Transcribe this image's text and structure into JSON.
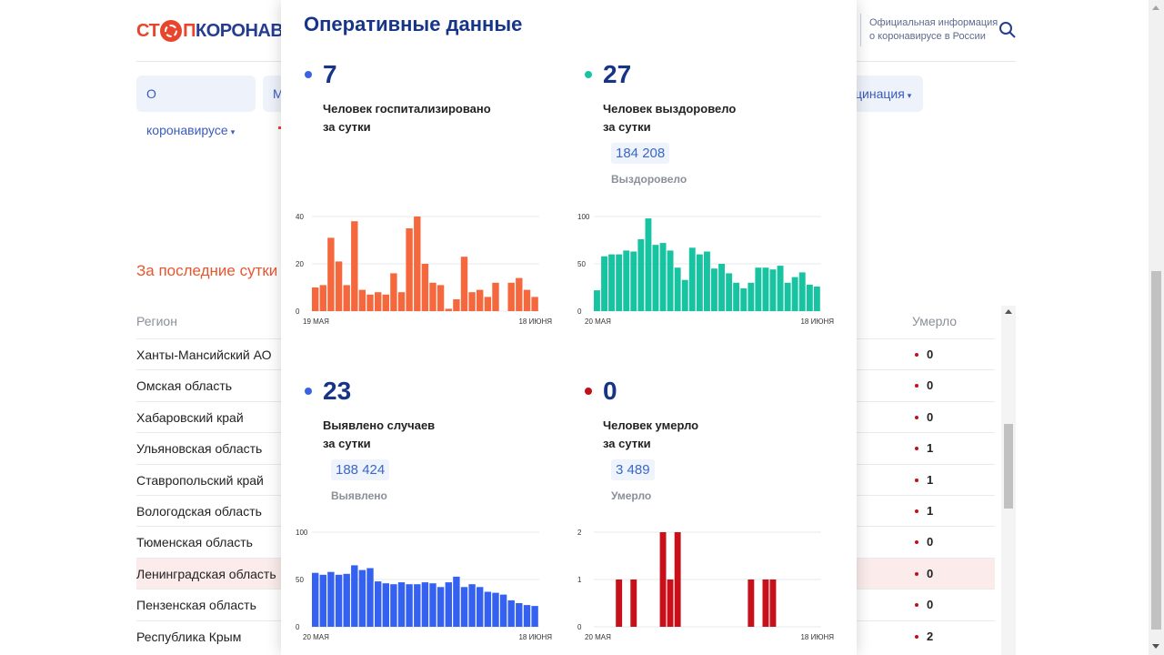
{
  "header": {
    "logo": {
      "part1": "СТ",
      "part2": "П",
      "part3": "КОРОНАВИ"
    },
    "info_line1": "Официальная информация",
    "info_line2": "о коронавирусе в России"
  },
  "nav": {
    "item1": "О коронавирусе",
    "item2": "М",
    "item3": "цинация",
    "caret": "▾"
  },
  "section_title": "За последние сутки",
  "table": {
    "col_region": "Регион",
    "col_died": "Умерло",
    "rows": [
      {
        "region": "Ханты-Мансийский АО",
        "died": "0"
      },
      {
        "region": "Омская область",
        "died": "0"
      },
      {
        "region": "Хабаровский край",
        "died": "0"
      },
      {
        "region": "Ульяновская область",
        "died": "1"
      },
      {
        "region": "Ставропольский край",
        "died": "1"
      },
      {
        "region": "Вологодская область",
        "died": "1"
      },
      {
        "region": "Тюменская область",
        "died": "0"
      },
      {
        "region": "Ленинградская область",
        "died": "0"
      },
      {
        "region": "Пензенская область",
        "died": "0"
      },
      {
        "region": "Республика Крым",
        "died": "2"
      },
      {
        "region": "",
        "died": ""
      }
    ]
  },
  "modal": {
    "title": "Оперативные данные",
    "stats": {
      "hospitalized": {
        "value": "7",
        "label_line1": "Человек госпитализировано",
        "label_line2": "за сутки",
        "color": "#3a63e0"
      },
      "recovered": {
        "value": "27",
        "label_line1": "Человек выздоровело",
        "label_line2": "за сутки",
        "total": "184 208",
        "total_label": "Выздоровело",
        "color": "#17c3a1"
      },
      "cases": {
        "value": "23",
        "label_line1": "Выявлено случаев",
        "label_line2": "за сутки",
        "total": "188 424",
        "total_label": "Выявлено",
        "color": "#3a63e0"
      },
      "died": {
        "value": "0",
        "label_line1": "Человек умерло",
        "label_line2": "за сутки",
        "total": "3 489",
        "total_label": "Умерло",
        "color": "#c0101a"
      }
    }
  },
  "chart_data": [
    {
      "type": "bar",
      "name": "hospitalized",
      "color": "#f5683d",
      "yticks": [
        0,
        20,
        40
      ],
      "ylim": [
        0,
        40
      ],
      "x_start_label": "19 МАЯ",
      "x_end_label": "18 ИЮНЯ",
      "values": [
        10,
        11,
        31,
        21,
        11,
        38,
        9,
        7,
        8,
        7,
        16,
        8,
        35,
        40,
        20,
        12,
        11,
        1,
        5,
        23,
        8,
        9,
        6,
        12,
        null,
        12,
        14,
        9,
        6
      ]
    },
    {
      "type": "bar",
      "name": "recovered",
      "color": "#17c3a1",
      "yticks": [
        0,
        50,
        100
      ],
      "ylim": [
        0,
        100
      ],
      "x_start_label": "20 МАЯ",
      "x_end_label": "18 ИЮНЯ",
      "values": [
        22,
        58,
        60,
        60,
        64,
        63,
        76,
        98,
        70,
        72,
        64,
        46,
        33,
        67,
        60,
        63,
        45,
        50,
        40,
        30,
        24,
        30,
        46,
        46,
        44,
        48,
        30,
        36,
        41,
        28,
        26
      ]
    },
    {
      "type": "bar",
      "name": "cases",
      "color": "#3461f0",
      "yticks": [
        0,
        50,
        100
      ],
      "ylim": [
        0,
        100
      ],
      "x_start_label": "20 МАЯ",
      "x_end_label": "18 ИЮНЯ",
      "values": [
        57,
        55,
        58,
        55,
        56,
        65,
        60,
        62,
        48,
        46,
        45,
        47,
        45,
        45,
        47,
        46,
        42,
        47,
        53,
        42,
        45,
        42,
        37,
        36,
        34,
        28,
        25,
        23,
        22
      ]
    },
    {
      "type": "bar",
      "name": "died",
      "color": "#c8101a",
      "yticks": [
        0,
        1,
        2
      ],
      "ylim": [
        0,
        2
      ],
      "x_start_label": "20 МАЯ",
      "x_end_label": "18 ИЮНЯ",
      "values": [
        0,
        0,
        0,
        1,
        0,
        1,
        0,
        0,
        0,
        2,
        1,
        2,
        0,
        0,
        0,
        0,
        0,
        0,
        0,
        0,
        0,
        1,
        0,
        1,
        1,
        0,
        0,
        0,
        0,
        0,
        0
      ]
    }
  ]
}
